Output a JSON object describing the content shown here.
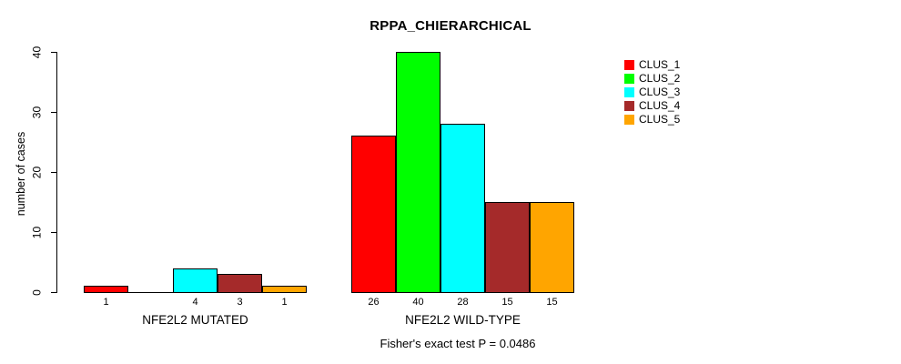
{
  "title": "RPPA_CHIERARCHICAL",
  "footer": "Fisher's exact test P = 0.0486",
  "y_axis": {
    "label": "number of cases",
    "ticks": [
      0,
      10,
      20,
      30,
      40
    ]
  },
  "legend": {
    "items": [
      {
        "label": "CLUS_1",
        "color": "#FF0000"
      },
      {
        "label": "CLUS_2",
        "color": "#00FF00"
      },
      {
        "label": "CLUS_3",
        "color": "#00FFFF"
      },
      {
        "label": "CLUS_4",
        "color": "#A52A2A"
      },
      {
        "label": "CLUS_5",
        "color": "#FFA500"
      }
    ]
  },
  "chart_data": {
    "type": "bar",
    "title": "RPPA_CHIERARCHICAL",
    "categories": [
      "NFE2L2 MUTATED",
      "NFE2L2 WILD-TYPE"
    ],
    "series": [
      {
        "name": "CLUS_1",
        "color": "#FF0000",
        "values": [
          1,
          26
        ]
      },
      {
        "name": "CLUS_2",
        "color": "#00FF00",
        "values": [
          0,
          40
        ]
      },
      {
        "name": "CLUS_3",
        "color": "#00FFFF",
        "values": [
          4,
          28
        ]
      },
      {
        "name": "CLUS_4",
        "color": "#A52A2A",
        "values": [
          3,
          15
        ]
      },
      {
        "name": "CLUS_5",
        "color": "#FFA500",
        "values": [
          1,
          15
        ]
      }
    ],
    "bar_value_labels": [
      [
        "1",
        "",
        "4",
        "3",
        "1"
      ],
      [
        "26",
        "40",
        "28",
        "15",
        "15"
      ]
    ],
    "xlabel": "",
    "ylabel": "number of cases",
    "ylim": [
      0,
      40
    ],
    "grid": false,
    "legend_position": "right",
    "annotation": "Fisher's exact test P = 0.0486"
  }
}
